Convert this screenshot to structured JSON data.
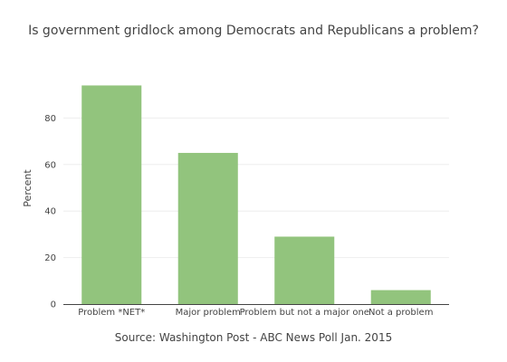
{
  "chart_data": {
    "type": "bar",
    "title": "Is government gridlock among Democrats and Republicans a problem?",
    "xlabel": "Source: Washington Post - ABC News Poll Jan. 2015",
    "ylabel": "Percent",
    "categories": [
      "Problem *NET*",
      "Major problem",
      "Problem but not a major one",
      "Not a problem"
    ],
    "values": [
      94,
      65,
      29,
      6
    ],
    "ylim": [
      0,
      100
    ],
    "yticks": [
      0,
      20,
      40,
      60,
      80
    ],
    "grid": true,
    "bar_color": "#92c47d"
  }
}
